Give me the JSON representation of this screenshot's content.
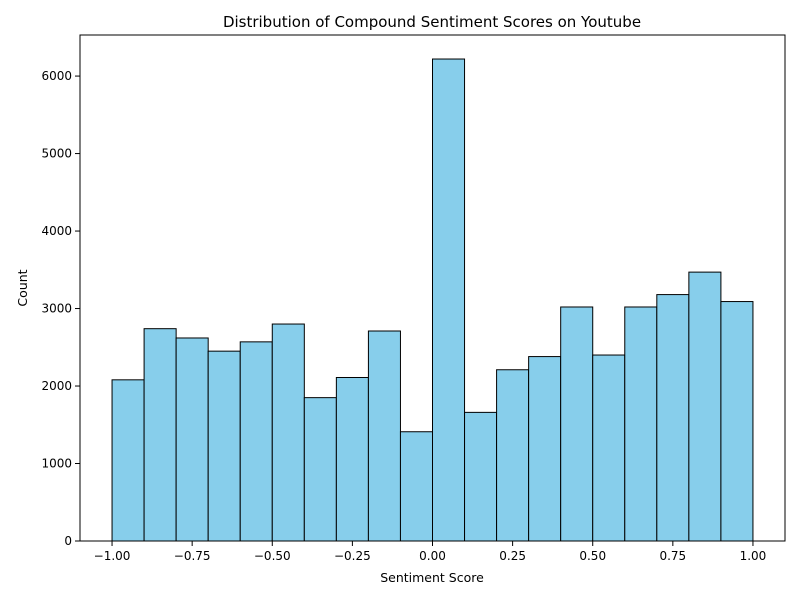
{
  "chart_data": {
    "type": "bar",
    "title": "Distribution of Compound Sentiment Scores on Youtube",
    "xlabel": "Sentiment Score",
    "ylabel": "Count",
    "bin_edges": [
      -1.0,
      -0.9,
      -0.8,
      -0.7,
      -0.6,
      -0.5,
      -0.4,
      -0.3,
      -0.2,
      -0.1,
      0.0,
      0.1,
      0.2,
      0.3,
      0.4,
      0.5,
      0.6,
      0.7,
      0.8,
      0.9,
      1.0
    ],
    "values": [
      2080,
      2740,
      2620,
      2450,
      2570,
      2800,
      1850,
      2110,
      2710,
      1410,
      6220,
      1660,
      2210,
      2380,
      3020,
      2400,
      3020,
      3180,
      3470,
      3090
    ],
    "xlim": [
      -1.1,
      1.1
    ],
    "ylim": [
      0,
      6530
    ],
    "x_ticks": [
      -1.0,
      -0.75,
      -0.5,
      -0.25,
      0.0,
      0.25,
      0.5,
      0.75,
      1.0
    ],
    "x_tick_labels": [
      "−1.00",
      "−0.75",
      "−0.50",
      "−0.25",
      "0.00",
      "0.25",
      "0.50",
      "0.75",
      "1.00"
    ],
    "y_ticks": [
      0,
      1000,
      2000,
      3000,
      4000,
      5000,
      6000
    ],
    "y_tick_labels": [
      "0",
      "1000",
      "2000",
      "3000",
      "4000",
      "5000",
      "6000"
    ],
    "grid": false,
    "legend": "none",
    "colors": {
      "bar_fill": "#87ceeb",
      "bar_edge": "#000000",
      "axis": "#000000",
      "background": "#ffffff"
    }
  }
}
